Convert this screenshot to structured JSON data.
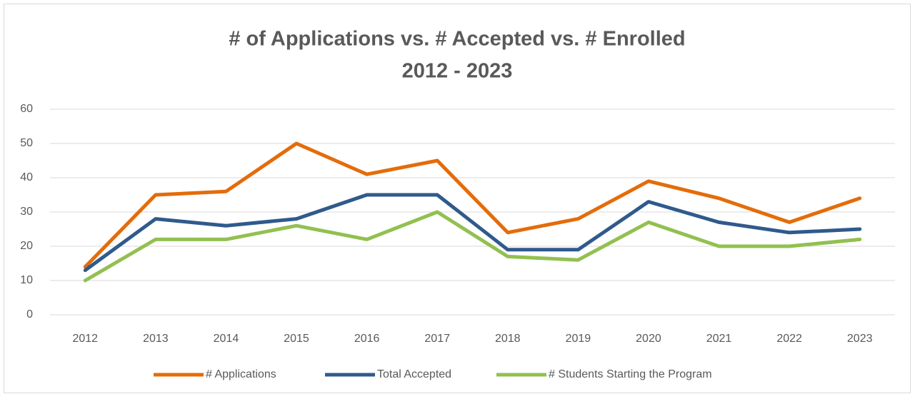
{
  "chart_data": {
    "type": "line",
    "title": "# of Applications vs. # Accepted vs. # Enrolled",
    "subtitle": "2012 - 2023",
    "categories": [
      "2012",
      "2013",
      "2014",
      "2015",
      "2016",
      "2017",
      "2018",
      "2019",
      "2020",
      "2021",
      "2022",
      "2023"
    ],
    "series": [
      {
        "name": "# Applications",
        "color": "#e46c0a",
        "values": [
          14,
          35,
          36,
          50,
          41,
          45,
          24,
          28,
          39,
          34,
          27,
          34
        ]
      },
      {
        "name": "Total Accepted",
        "color": "#2f5a8c",
        "values": [
          13,
          28,
          26,
          28,
          35,
          35,
          19,
          19,
          33,
          27,
          24,
          25
        ]
      },
      {
        "name": "# Students Starting the Program",
        "color": "#92c050",
        "values": [
          10,
          22,
          22,
          26,
          22,
          30,
          17,
          16,
          27,
          20,
          20,
          22
        ]
      }
    ],
    "ylim": [
      0,
      60
    ],
    "yticks": [
      0,
      10,
      20,
      30,
      40,
      50,
      60
    ],
    "grid": true,
    "legend": "bottom"
  }
}
